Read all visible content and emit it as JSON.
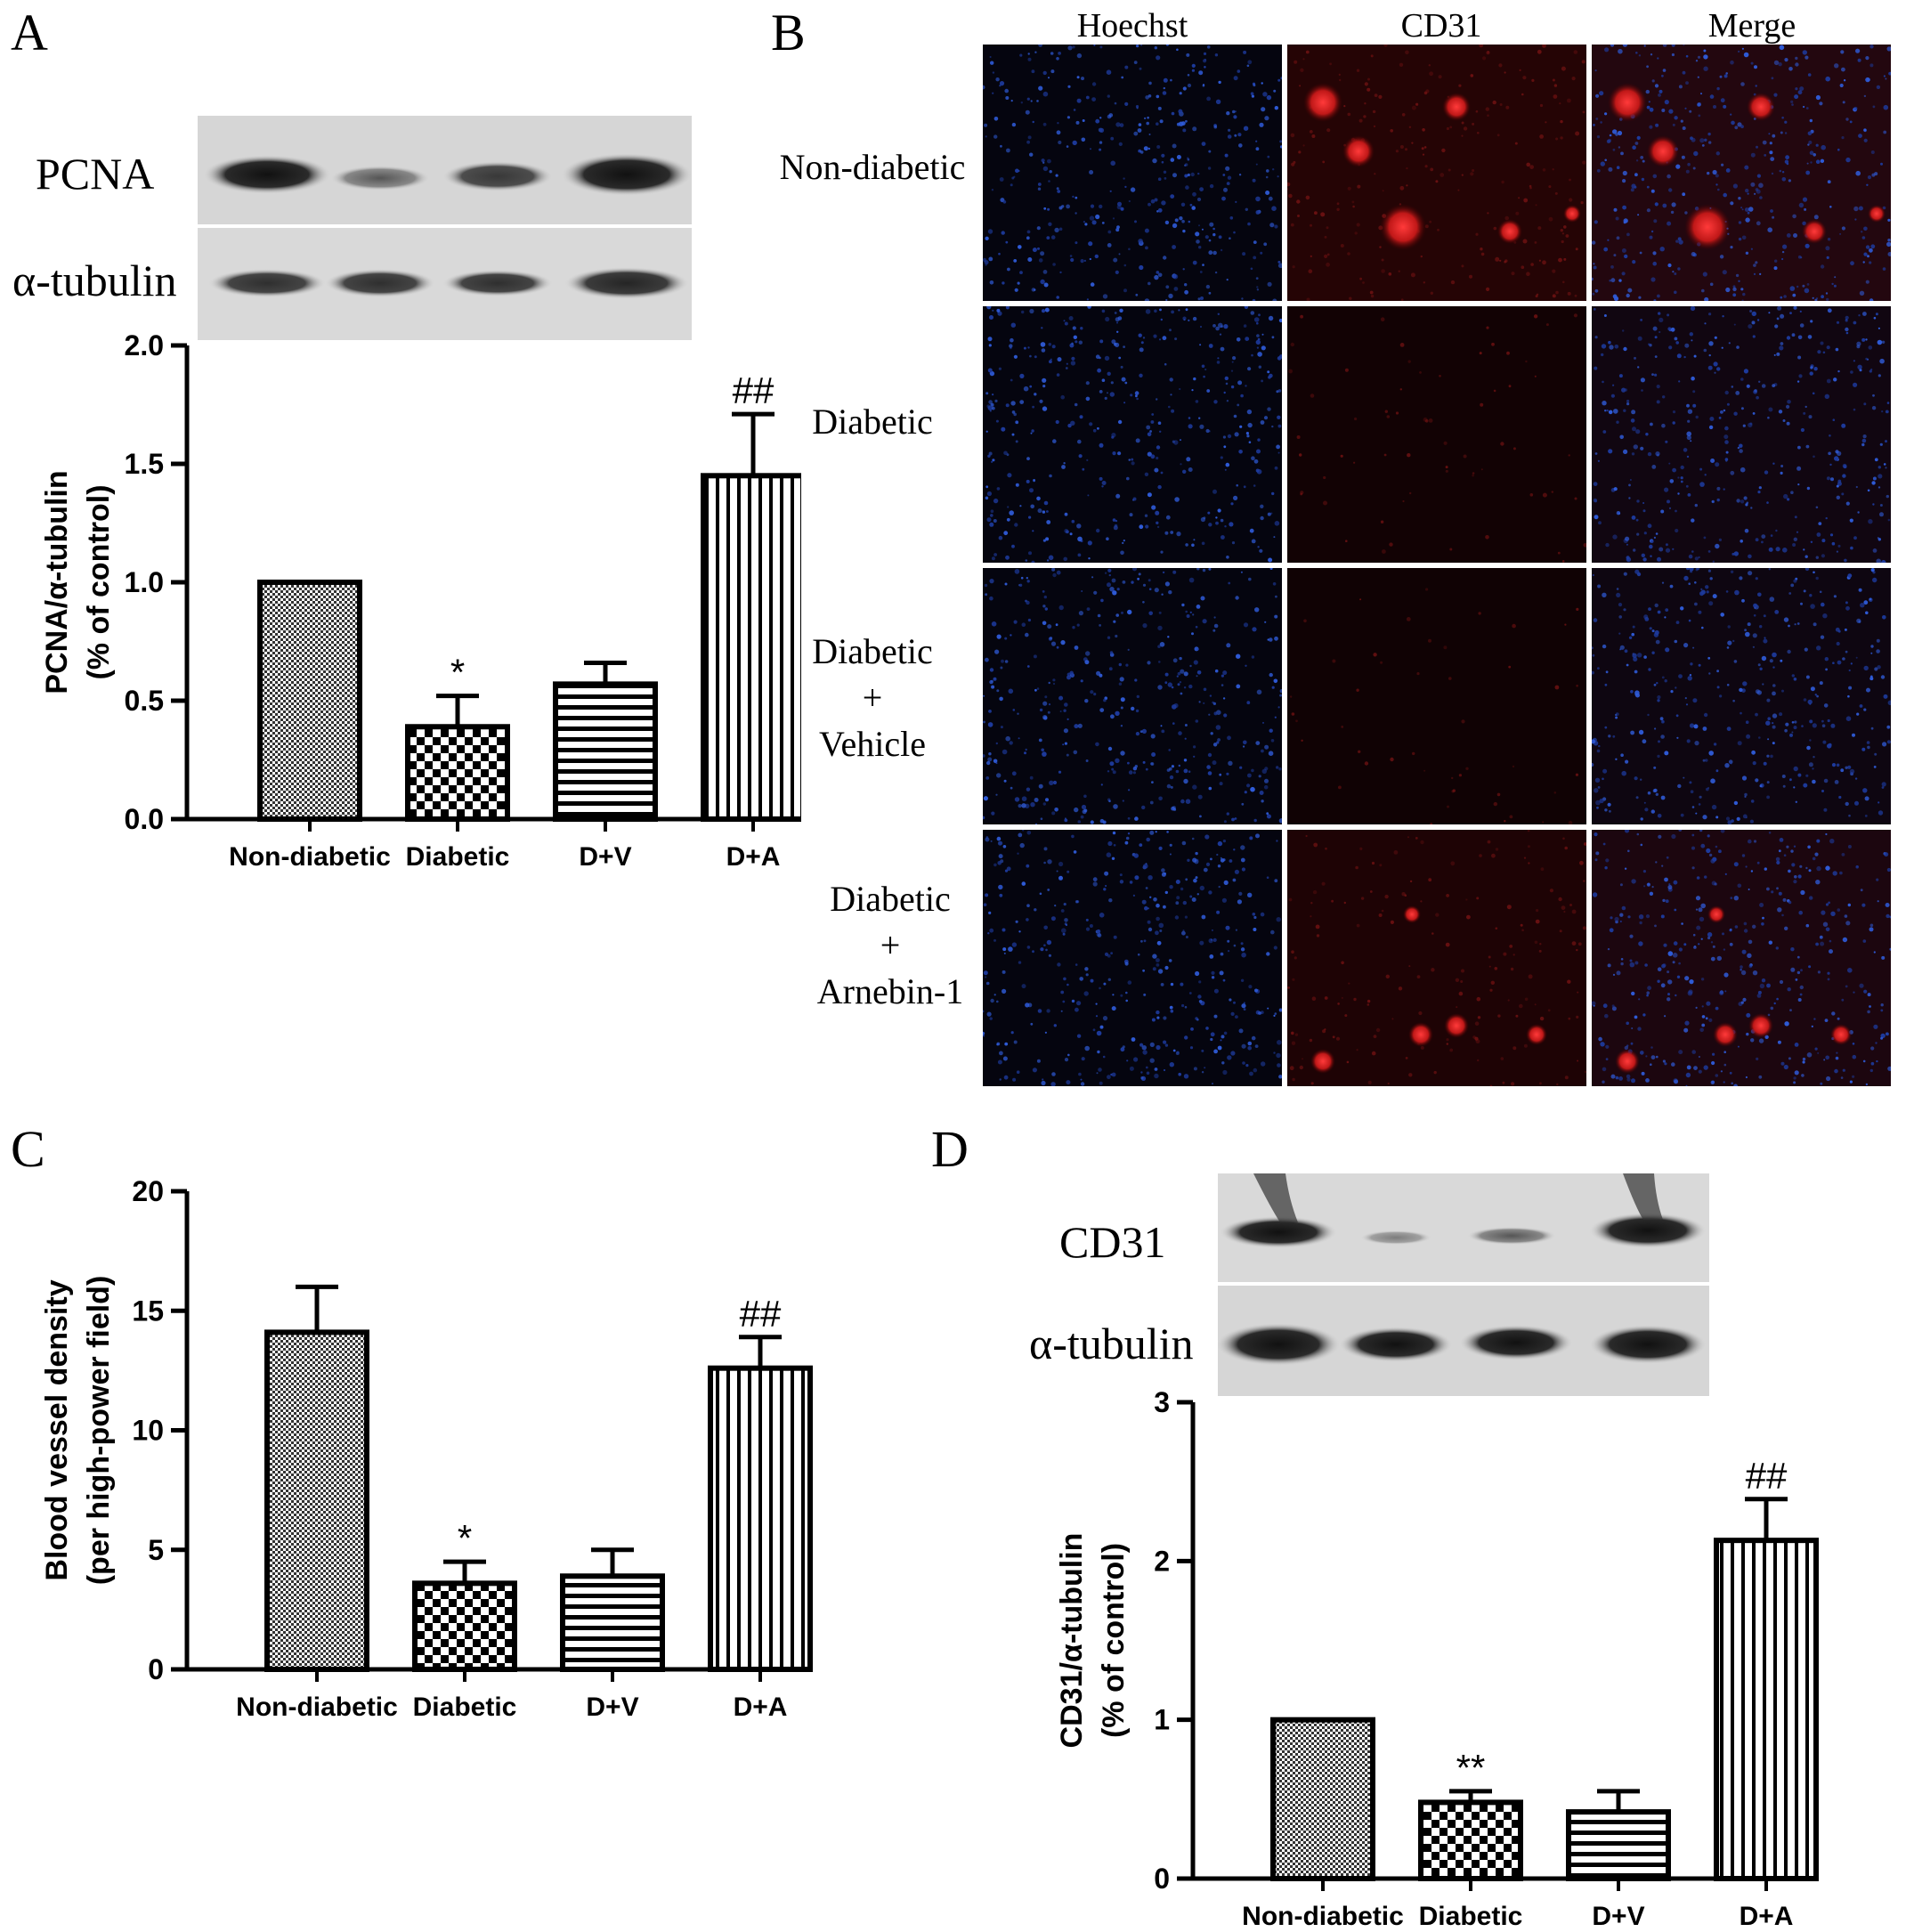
{
  "figure": {
    "panels": [
      "A",
      "B",
      "C",
      "D"
    ]
  },
  "panelA": {
    "letter": "A",
    "blot": {
      "labels": [
        "PCNA",
        "α-tubulin"
      ]
    },
    "chart": {
      "ylabel_line1": "PCNA/α-tubulin",
      "ylabel_line2": "(% of control)",
      "yticks": [
        "0.0",
        "0.5",
        "1.0",
        "1.5",
        "2.0"
      ]
    }
  },
  "panelB": {
    "letter": "B",
    "columns": [
      "Hoechst",
      "CD31",
      "Merge"
    ],
    "rows": [
      {
        "lines": [
          "Non-diabetic"
        ]
      },
      {
        "lines": [
          "Diabetic"
        ]
      },
      {
        "lines": [
          "Diabetic",
          "+",
          "Vehicle"
        ]
      },
      {
        "lines": [
          "Diabetic",
          "+",
          "Arnebin-1"
        ]
      }
    ]
  },
  "panelC": {
    "letter": "C",
    "chart": {
      "ylabel_line1": "Blood vessel density",
      "ylabel_line2": "(per high-power field)",
      "yticks": [
        "0",
        "5",
        "10",
        "15",
        "20"
      ]
    }
  },
  "panelD": {
    "letter": "D",
    "blot": {
      "labels": [
        "CD31",
        "α-tubulin"
      ]
    },
    "chart": {
      "ylabel_line1": "CD31/α-tubulin",
      "ylabel_line2": "(% of control)",
      "yticks": [
        "0",
        "1",
        "2",
        "3"
      ]
    }
  },
  "chart_data": [
    {
      "type": "bar",
      "id": "A",
      "title": "",
      "xlabel": "",
      "ylabel": "PCNA/α-tubulin (% of control)",
      "categories": [
        "Non-diabetic",
        "Diabetic",
        "D+V",
        "D+A"
      ],
      "values": [
        1.0,
        0.39,
        0.57,
        1.45
      ],
      "errors": [
        0.0,
        0.13,
        0.09,
        0.26
      ],
      "annotations": [
        "",
        "*",
        "",
        "##"
      ],
      "ylim": [
        0,
        2.0
      ],
      "yticks": [
        0,
        0.5,
        1.0,
        1.5,
        2.0
      ],
      "patterns": [
        "crosshatch",
        "checker",
        "horizontal",
        "vertical"
      ]
    },
    {
      "type": "bar",
      "id": "C",
      "title": "",
      "xlabel": "",
      "ylabel": "Blood vessel density (per high-power field)",
      "categories": [
        "Non-diabetic",
        "Diabetic",
        "D+V",
        "D+A"
      ],
      "values": [
        14.1,
        3.6,
        3.9,
        12.6
      ],
      "errors": [
        1.9,
        0.9,
        1.1,
        1.3
      ],
      "annotations": [
        "",
        "*",
        "",
        "##"
      ],
      "ylim": [
        0,
        20
      ],
      "yticks": [
        0,
        5,
        10,
        15,
        20
      ],
      "patterns": [
        "crosshatch",
        "checker",
        "horizontal",
        "vertical"
      ]
    },
    {
      "type": "bar",
      "id": "D",
      "title": "",
      "xlabel": "",
      "ylabel": "CD31/α-tubulin (% of control)",
      "categories": [
        "Non-diabetic",
        "Diabetic",
        "D+V",
        "D+A"
      ],
      "values": [
        1.0,
        0.48,
        0.42,
        2.13
      ],
      "errors": [
        0.0,
        0.07,
        0.13,
        0.26
      ],
      "annotations": [
        "",
        "**",
        "",
        "##"
      ],
      "ylim": [
        0,
        3
      ],
      "yticks": [
        0,
        1,
        2,
        3
      ],
      "patterns": [
        "crosshatch",
        "checker",
        "horizontal",
        "vertical"
      ]
    }
  ]
}
